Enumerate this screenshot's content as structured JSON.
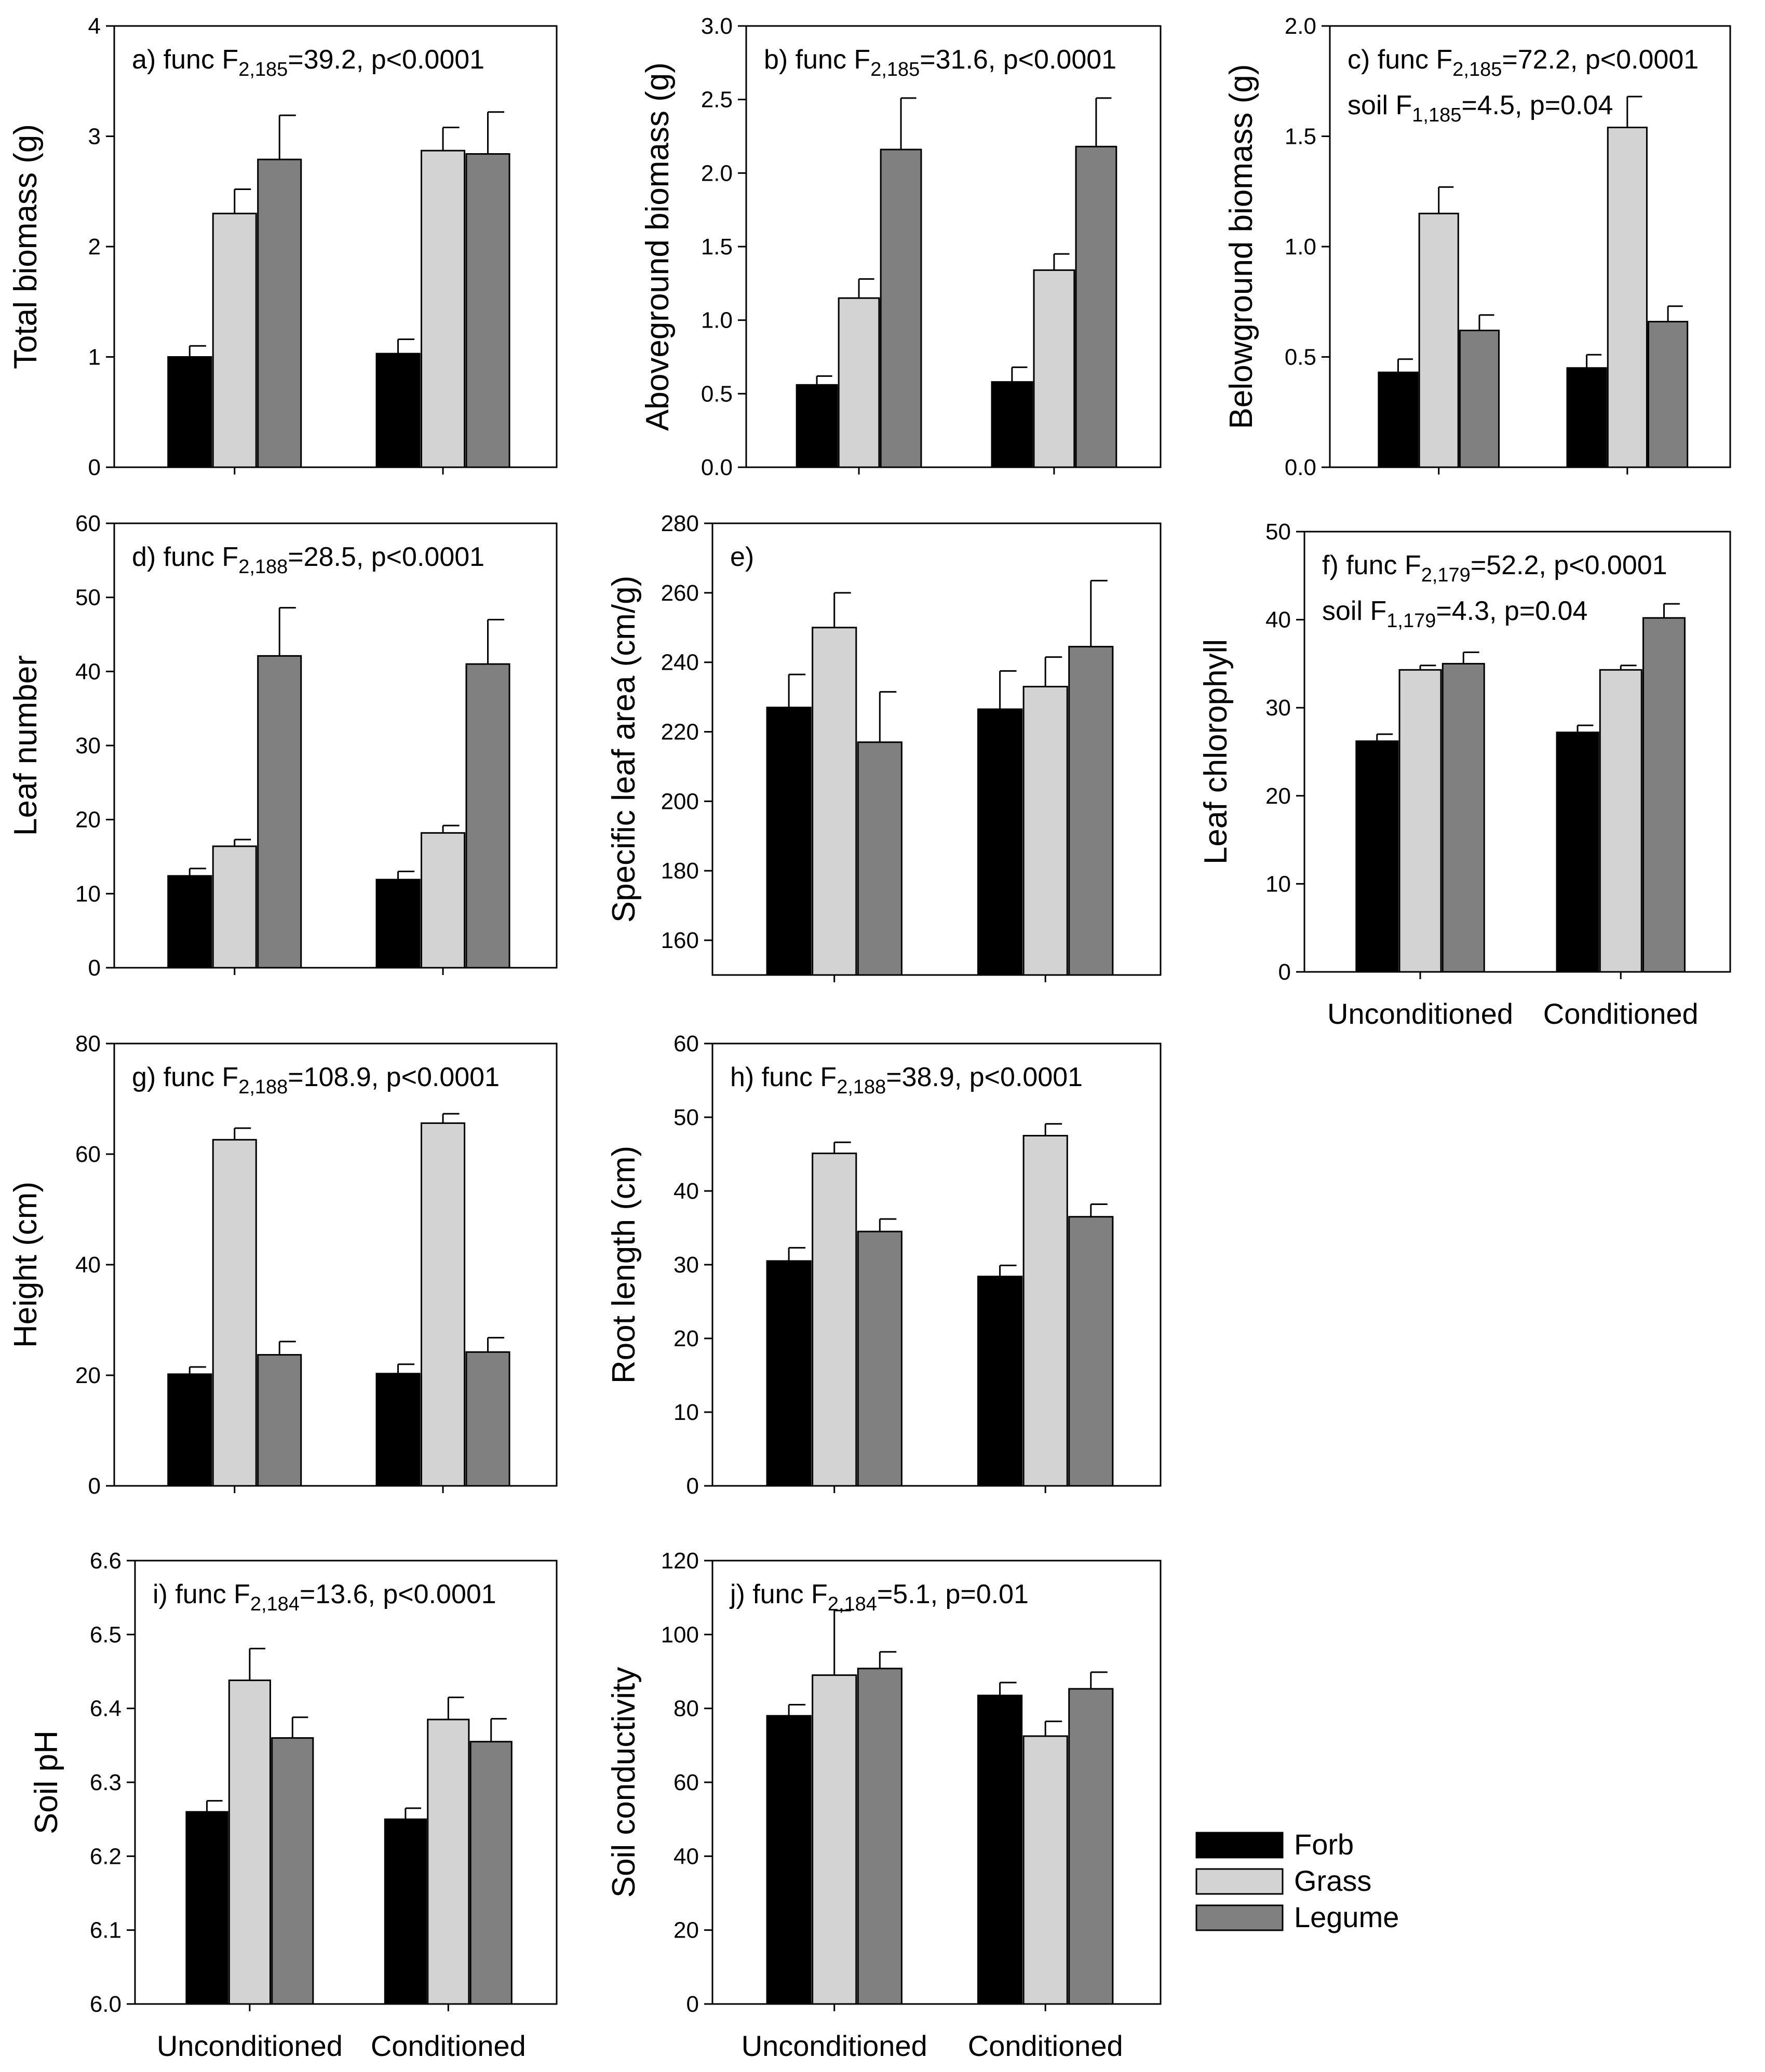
{
  "figure": {
    "categories": [
      "Unconditioned",
      "Conditioned"
    ],
    "groups": [
      "Forb",
      "Grass",
      "Legume"
    ],
    "colors": {
      "Forb": "#000000",
      "Grass": "#d3d3d3",
      "Legume": "#808080"
    },
    "legend": [
      "Forb",
      "Grass",
      "Legume"
    ]
  },
  "chart_data": [
    {
      "id": "a",
      "type": "bar",
      "title": "",
      "ylabel": "Total biomass (g)",
      "categories": [
        "Unconditioned",
        "Conditioned"
      ],
      "ylim": [
        0,
        4
      ],
      "ticks": [
        0,
        1,
        2,
        3,
        4
      ],
      "tick_labels": [
        "0",
        "1",
        "2",
        "3",
        "4"
      ],
      "series": [
        {
          "name": "Forb",
          "values": [
            1.0,
            1.03
          ],
          "errors": [
            0.1,
            0.13
          ]
        },
        {
          "name": "Grass",
          "values": [
            2.3,
            2.87
          ],
          "errors": [
            0.22,
            0.21
          ]
        },
        {
          "name": "Legume",
          "values": [
            2.79,
            2.84
          ],
          "errors": [
            0.4,
            0.38
          ]
        }
      ],
      "annotation": [
        {
          "pre": "a)  func F",
          "sub": "2,185",
          "post": "=39.2, p<0.0001"
        }
      ]
    },
    {
      "id": "b",
      "type": "bar",
      "title": "",
      "ylabel": "Aboveground biomass (g)",
      "categories": [
        "Unconditioned",
        "Conditioned"
      ],
      "ylim": [
        0,
        3
      ],
      "ticks": [
        0,
        0.5,
        1,
        1.5,
        2,
        2.5,
        3
      ],
      "tick_labels": [
        "0.0",
        "0.5",
        "1.0",
        "1.5",
        "2.0",
        "2.5",
        "3.0"
      ],
      "series": [
        {
          "name": "Forb",
          "values": [
            0.56,
            0.58
          ],
          "errors": [
            0.06,
            0.1
          ]
        },
        {
          "name": "Grass",
          "values": [
            1.15,
            1.34
          ],
          "errors": [
            0.13,
            0.11
          ]
        },
        {
          "name": "Legume",
          "values": [
            2.16,
            2.18
          ],
          "errors": [
            0.35,
            0.33
          ]
        }
      ],
      "annotation": [
        {
          "pre": "b) func F",
          "sub": "2,185",
          "post": "=31.6, p<0.0001"
        }
      ]
    },
    {
      "id": "c",
      "type": "bar",
      "title": "",
      "ylabel": "Belowground biomass (g)",
      "categories": [
        "Unconditioned",
        "Conditioned"
      ],
      "ylim": [
        0,
        2
      ],
      "ticks": [
        0,
        0.5,
        1,
        1.5,
        2
      ],
      "tick_labels": [
        "0.0",
        "0.5",
        "1.0",
        "1.5",
        "2.0"
      ],
      "series": [
        {
          "name": "Forb",
          "values": [
            0.43,
            0.45
          ],
          "errors": [
            0.06,
            0.06
          ]
        },
        {
          "name": "Grass",
          "values": [
            1.15,
            1.54
          ],
          "errors": [
            0.12,
            0.14
          ]
        },
        {
          "name": "Legume",
          "values": [
            0.62,
            0.66
          ],
          "errors": [
            0.07,
            0.07
          ]
        }
      ],
      "annotation": [
        {
          "pre": "c) func F",
          "sub": "2,185",
          "post": "=72.2, p<0.0001"
        },
        {
          "pre": "soil F",
          "sub": "1,185",
          "post": "=4.5, p=0.04"
        }
      ]
    },
    {
      "id": "d",
      "type": "bar",
      "title": "",
      "ylabel": "Leaf number",
      "categories": [
        "Unconditioned",
        "Conditioned"
      ],
      "ylim": [
        0,
        60
      ],
      "ticks": [
        0,
        10,
        20,
        30,
        40,
        50,
        60
      ],
      "tick_labels": [
        "0",
        "10",
        "20",
        "30",
        "40",
        "50",
        "60"
      ],
      "series": [
        {
          "name": "Forb",
          "values": [
            12.4,
            11.9
          ],
          "errors": [
            1.0,
            1.1
          ]
        },
        {
          "name": "Grass",
          "values": [
            16.4,
            18.2
          ],
          "errors": [
            0.9,
            1.0
          ]
        },
        {
          "name": "Legume",
          "values": [
            42.1,
            41.0
          ],
          "errors": [
            6.5,
            6.0
          ]
        }
      ],
      "annotation": [
        {
          "pre": "d) func F",
          "sub": "2,188",
          "post": "=28.5, p<0.0001"
        }
      ]
    },
    {
      "id": "e",
      "type": "bar",
      "title": "",
      "ylabel": "Specific leaf area (cm/g)",
      "categories": [
        "Unconditioned",
        "Conditioned"
      ],
      "ylim": [
        150,
        280
      ],
      "ticks": [
        160,
        180,
        200,
        220,
        240,
        260,
        280
      ],
      "tick_labels": [
        "160",
        "180",
        "200",
        "220",
        "240",
        "260",
        "280"
      ],
      "series": [
        {
          "name": "Forb",
          "values": [
            227,
            226.5
          ],
          "errors": [
            9.5,
            11
          ]
        },
        {
          "name": "Grass",
          "values": [
            250,
            233
          ],
          "errors": [
            10,
            8.5
          ]
        },
        {
          "name": "Legume",
          "values": [
            217,
            244.5
          ],
          "errors": [
            14.5,
            19
          ]
        }
      ],
      "annotation": [
        {
          "pre": "e)",
          "sub": "",
          "post": ""
        }
      ]
    },
    {
      "id": "f",
      "type": "bar",
      "title": "",
      "ylabel": "Leaf chlorophyll",
      "categories": [
        "Unconditioned",
        "Conditioned"
      ],
      "ylim": [
        0,
        50
      ],
      "ticks": [
        0,
        10,
        20,
        30,
        40,
        50
      ],
      "tick_labels": [
        "0",
        "10",
        "20",
        "30",
        "40",
        "50"
      ],
      "series": [
        {
          "name": "Forb",
          "values": [
            26.2,
            27.2
          ],
          "errors": [
            0.8,
            0.8
          ]
        },
        {
          "name": "Grass",
          "values": [
            34.3,
            34.3
          ],
          "errors": [
            0.5,
            0.5
          ]
        },
        {
          "name": "Legume",
          "values": [
            35.0,
            40.2
          ],
          "errors": [
            1.3,
            1.6
          ]
        }
      ],
      "annotation": [
        {
          "pre": "f) func F",
          "sub": "2,179",
          "post": "=52.2, p<0.0001"
        },
        {
          "pre": "soil F",
          "sub": "1,179",
          "post": "=4.3, p=0.04"
        }
      ]
    },
    {
      "id": "g",
      "type": "bar",
      "title": "",
      "ylabel": "Height (cm)",
      "categories": [
        "Unconditioned",
        "Conditioned"
      ],
      "ylim": [
        0,
        80
      ],
      "ticks": [
        0,
        20,
        40,
        60,
        80
      ],
      "tick_labels": [
        "0",
        "20",
        "40",
        "60",
        "80"
      ],
      "series": [
        {
          "name": "Forb",
          "values": [
            20.2,
            20.3
          ],
          "errors": [
            1.3,
            1.7
          ]
        },
        {
          "name": "Grass",
          "values": [
            62.6,
            65.6
          ],
          "errors": [
            2.1,
            1.7
          ]
        },
        {
          "name": "Legume",
          "values": [
            23.7,
            24.2
          ],
          "errors": [
            2.4,
            2.6
          ]
        }
      ],
      "annotation": [
        {
          "pre": "g) func F",
          "sub": "2,188",
          "post": "=108.9, p<0.0001"
        }
      ]
    },
    {
      "id": "h",
      "type": "bar",
      "title": "",
      "ylabel": "Root length (cm)",
      "categories": [
        "Unconditioned",
        "Conditioned"
      ],
      "ylim": [
        0,
        60
      ],
      "ticks": [
        0,
        10,
        20,
        30,
        40,
        50,
        60
      ],
      "tick_labels": [
        "0",
        "10",
        "20",
        "30",
        "40",
        "50",
        "60"
      ],
      "series": [
        {
          "name": "Forb",
          "values": [
            30.5,
            28.4
          ],
          "errors": [
            1.8,
            1.5
          ]
        },
        {
          "name": "Grass",
          "values": [
            45.1,
            47.5
          ],
          "errors": [
            1.5,
            1.6
          ]
        },
        {
          "name": "Legume",
          "values": [
            34.5,
            36.5
          ],
          "errors": [
            1.7,
            1.7
          ]
        }
      ],
      "annotation": [
        {
          "pre": "h) func F",
          "sub": "2,188",
          "post": "=38.9, p<0.0001"
        }
      ]
    },
    {
      "id": "i",
      "type": "bar",
      "title": "",
      "ylabel": "Soil pH",
      "categories": [
        "Unconditioned",
        "Conditioned"
      ],
      "ylim": [
        6.0,
        6.6
      ],
      "ticks": [
        6.0,
        6.1,
        6.2,
        6.3,
        6.4,
        6.5,
        6.6
      ],
      "tick_labels": [
        "6.0",
        "6.1",
        "6.2",
        "6.3",
        "6.4",
        "6.5",
        "6.6"
      ],
      "series": [
        {
          "name": "Forb",
          "values": [
            6.26,
            6.25
          ],
          "errors": [
            0.015,
            0.015
          ]
        },
        {
          "name": "Grass",
          "values": [
            6.438,
            6.385
          ],
          "errors": [
            0.043,
            0.03
          ]
        },
        {
          "name": "Legume",
          "values": [
            6.36,
            6.355
          ],
          "errors": [
            0.028,
            0.031
          ]
        }
      ],
      "annotation": [
        {
          "pre": "i) func F",
          "sub": "2,184",
          "post": "=13.6, p<0.0001"
        }
      ]
    },
    {
      "id": "j",
      "type": "bar",
      "title": "",
      "ylabel": "Soil conductivity",
      "categories": [
        "Unconditioned",
        "Conditioned"
      ],
      "ylim": [
        0,
        120
      ],
      "ticks": [
        0,
        20,
        40,
        60,
        80,
        100,
        120
      ],
      "tick_labels": [
        "0",
        "20",
        "40",
        "60",
        "80",
        "100",
        "120"
      ],
      "series": [
        {
          "name": "Forb",
          "values": [
            78,
            83.5
          ],
          "errors": [
            3,
            3.5
          ]
        },
        {
          "name": "Grass",
          "values": [
            89,
            72.5
          ],
          "errors": [
            17.5,
            4
          ]
        },
        {
          "name": "Legume",
          "values": [
            90.8,
            85.3
          ],
          "errors": [
            4.5,
            4.5
          ]
        }
      ],
      "annotation": [
        {
          "pre": "j) func F",
          "sub": "2,184",
          "post": "=5.1, p=0.01"
        }
      ]
    }
  ]
}
